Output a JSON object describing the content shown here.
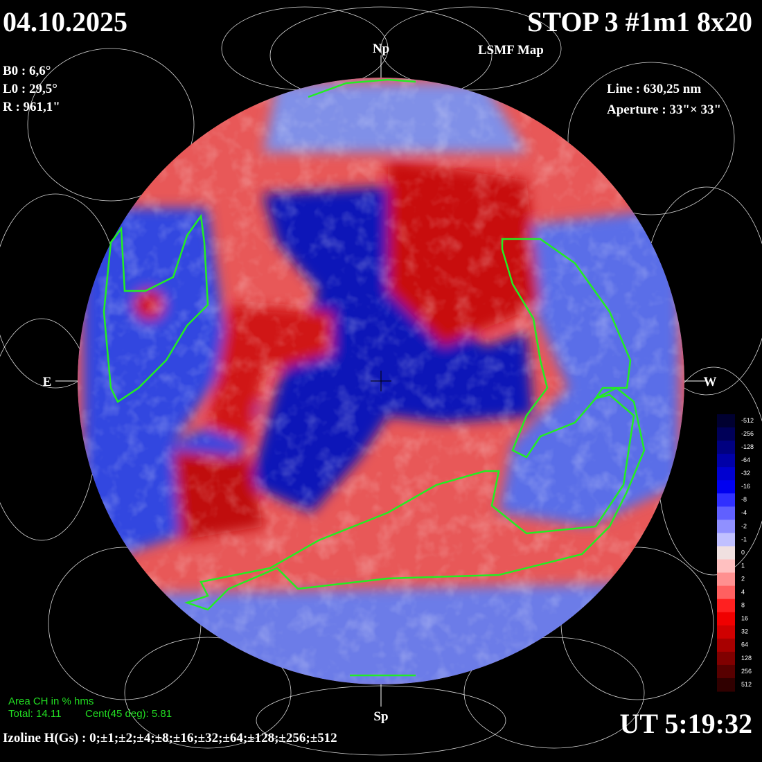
{
  "header": {
    "date": "04.10.2025",
    "title": "STOP 3 #1m1 8x20",
    "subtitle": "LSMF  Map",
    "ut": "UT 5:19:32"
  },
  "params_left": [
    "B0 : 6,6°",
    "L0 : 29,5°",
    "R  : 961,1\""
  ],
  "params_right": [
    "Line :  630,25 nm",
    "Aperture : 33\"× 33\""
  ],
  "directions": {
    "north": "Np",
    "south": "Sp",
    "east": "E",
    "west": "W"
  },
  "area": {
    "title": "Area CH in % hms",
    "total": "Total: 14.11",
    "cent": "Cent(45 deg): 5.81"
  },
  "isolines": "Izoline H(Gs) : 0;±1;±2;±4;±8;±16;±32;±64;±128;±256;±512",
  "colorbar": [
    "-512",
    "-256",
    "-128",
    "-64",
    "-32",
    "-16",
    "-8",
    "-4",
    "-2",
    "-1",
    "0",
    "1",
    "2",
    "4",
    "8",
    "16",
    "32",
    "64",
    "128",
    "256",
    "512"
  ]
}
